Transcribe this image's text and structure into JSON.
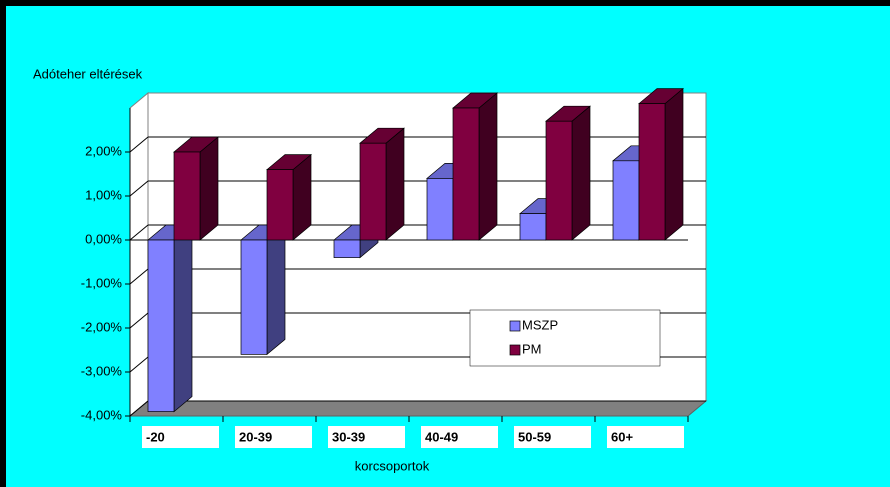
{
  "chart_data": {
    "type": "bar3d",
    "y_axis_title": "Adóteher eltérések",
    "x_axis_title": "korcsoportok",
    "categories": [
      "-20",
      "20-39",
      "30-39",
      "40-49",
      "50-59",
      "60+"
    ],
    "series": [
      {
        "name": "MSZP",
        "color": "#8080ff",
        "values": [
          -3.9,
          -2.6,
          -0.4,
          1.4,
          0.6,
          1.8
        ]
      },
      {
        "name": "PM",
        "color": "#800040",
        "values": [
          2.0,
          1.6,
          2.2,
          3.0,
          2.7,
          3.1
        ]
      }
    ],
    "ylim": [
      -4,
      3
    ],
    "yticks": [
      {
        "value": -4,
        "label": "-4,00%"
      },
      {
        "value": -3,
        "label": "-3,00%"
      },
      {
        "value": -2,
        "label": "-2,00%"
      },
      {
        "value": -1,
        "label": "-1,00%"
      },
      {
        "value": 0,
        "label": "0,00%"
      },
      {
        "value": 1,
        "label": "1,00%"
      },
      {
        "value": 2,
        "label": "2,00%"
      }
    ],
    "grid": true,
    "legend": "right"
  }
}
